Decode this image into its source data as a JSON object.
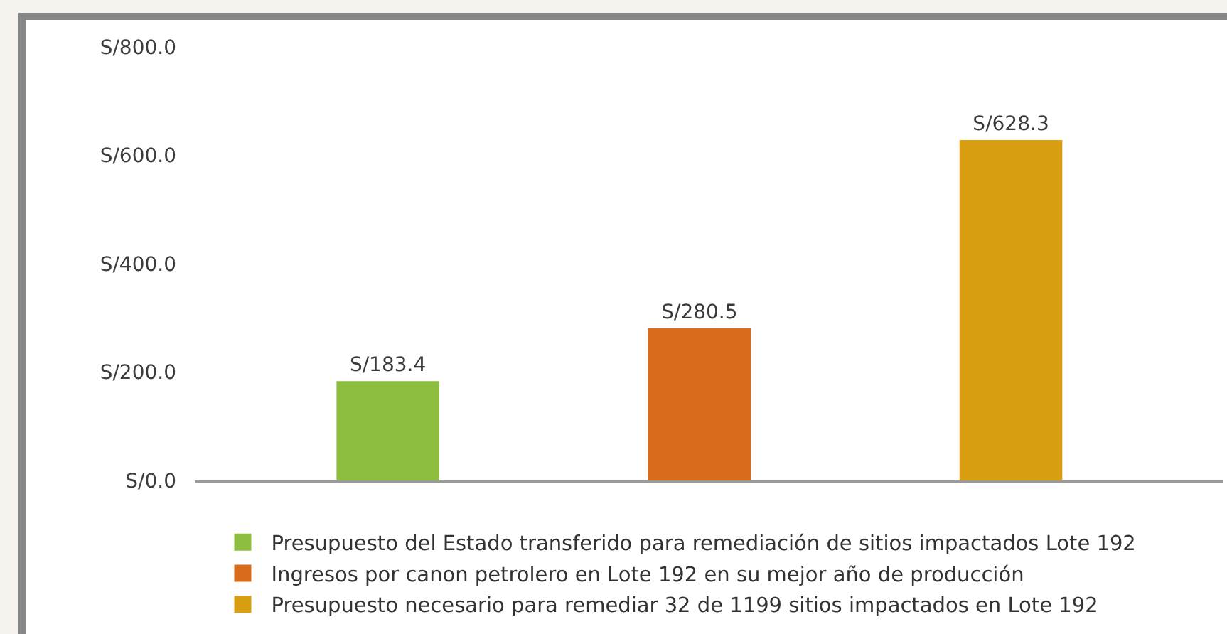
{
  "chart_data": {
    "type": "bar",
    "categories": [
      null,
      null,
      null
    ],
    "series": [
      {
        "name": "Presupuesto del Estado transferido para remediación de sitios impactados Lote 192",
        "color": "#8dbd3f",
        "values": [
          183.4,
          null,
          null
        ],
        "value_labels": [
          "S/183.4",
          null,
          null
        ]
      },
      {
        "name": "Ingresos por canon petrolero en Lote 192 en su mejor año de producción",
        "color": "#d76d1c",
        "values": [
          null,
          280.5,
          null
        ],
        "value_labels": [
          null,
          "S/280.5",
          null
        ]
      },
      {
        "name": "Presupuesto necesario para remediar 32 de 1199 sitios impactados en Lote 192",
        "color": "#d89e12",
        "values": [
          null,
          null,
          628.3
        ],
        "value_labels": [
          null,
          null,
          "S/628.3"
        ]
      }
    ],
    "ylim": [
      0,
      800
    ],
    "yticks": [
      {
        "value": 0,
        "label": "S/0.0"
      },
      {
        "value": 200,
        "label": "S/200.0"
      },
      {
        "value": 400,
        "label": "S/400.0"
      },
      {
        "value": 600,
        "label": "S/600.0"
      },
      {
        "value": 800,
        "label": "S/800.0"
      }
    ],
    "grid": false,
    "legend": "bottom"
  }
}
